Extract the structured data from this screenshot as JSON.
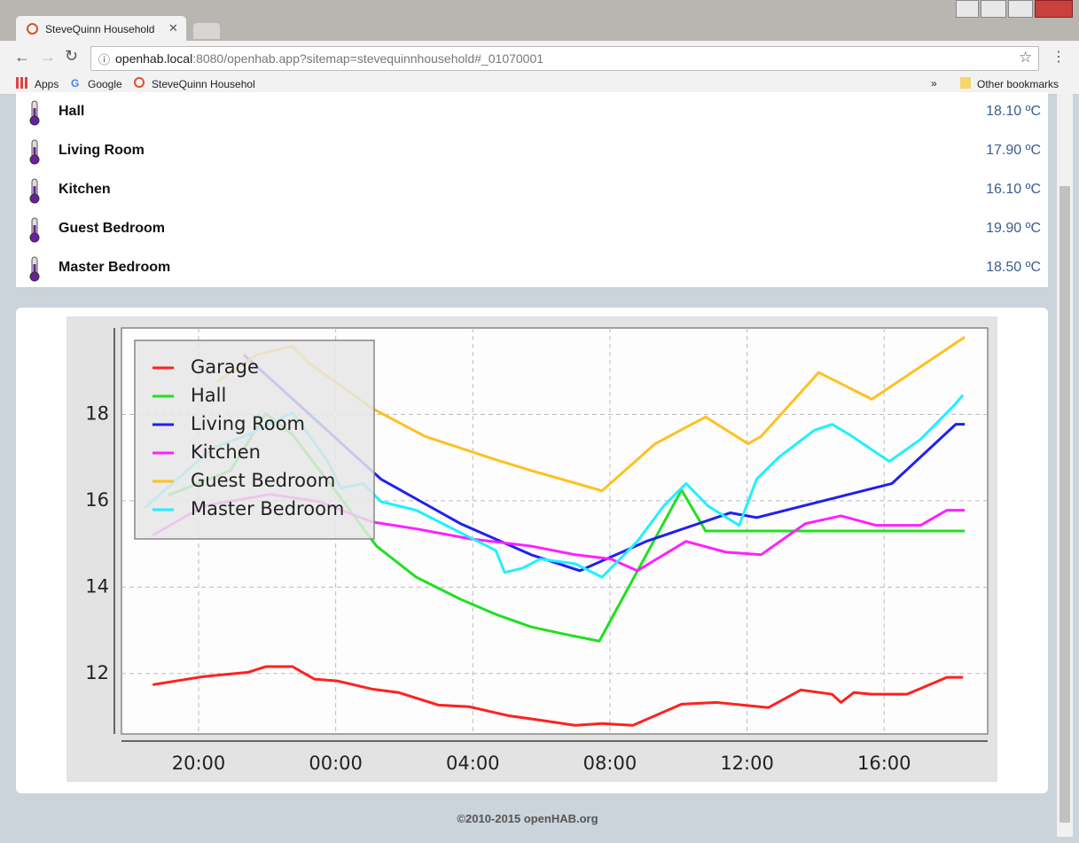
{
  "browser": {
    "tab_title": "SteveQuinn Household",
    "url_host": "openhab.local",
    "url_rest": ":8080/openhab.app?sitemap=stevequinnhousehold#_01070001",
    "bookmarks": [
      "Apps",
      "Google",
      "SteveQuinn Househol"
    ],
    "other_bookmarks": "Other bookmarks"
  },
  "items": [
    {
      "label": "Hall",
      "value": "18.10 ºC"
    },
    {
      "label": "Living Room",
      "value": "17.90 ºC"
    },
    {
      "label": "Kitchen",
      "value": "16.10 ºC"
    },
    {
      "label": "Guest Bedroom",
      "value": "19.90 ºC"
    },
    {
      "label": "Master Bedroom",
      "value": "18.50 ºC"
    }
  ],
  "chart_data": {
    "type": "line",
    "xlim": [
      17.75,
      43.02
    ],
    "ylim": [
      10.6,
      20
    ],
    "xticks": [
      {
        "value": 20,
        "label": "20:00"
      },
      {
        "value": 24,
        "label": "00:00"
      },
      {
        "value": 28,
        "label": "04:00"
      },
      {
        "value": 32,
        "label": "08:00"
      },
      {
        "value": 36,
        "label": "12:00"
      },
      {
        "value": 40,
        "label": "16:00"
      }
    ],
    "yticks": [
      12,
      14,
      16,
      18
    ],
    "grid": true,
    "legend": "upper left",
    "series": [
      {
        "name": "Garage",
        "color": "#ff2020",
        "x": [
          18.66,
          20.15,
          21.45,
          21.96,
          22.74,
          23.38,
          24.03,
          25.06,
          25.83,
          26.99,
          27.9,
          29.06,
          29.96,
          30.99,
          31.77,
          32.67,
          34.09,
          35.12,
          36.62,
          37.57,
          38.48,
          38.74,
          39.12,
          39.64,
          40.67,
          41.83,
          42.3
        ],
        "values": [
          11.74,
          11.93,
          12.03,
          12.16,
          12.16,
          11.87,
          11.83,
          11.64,
          11.56,
          11.27,
          11.23,
          11.02,
          10.92,
          10.8,
          10.84,
          10.8,
          11.29,
          11.33,
          11.21,
          11.62,
          11.52,
          11.33,
          11.56,
          11.52,
          11.52,
          11.91,
          11.91
        ]
      },
      {
        "name": "Hall",
        "color": "#20e020",
        "x": [
          19.12,
          20.93,
          21.96,
          22.74,
          24.03,
          25.19,
          26.35,
          27.64,
          28.67,
          29.7,
          30.74,
          31.69,
          34.09,
          34.79,
          42.35
        ],
        "values": [
          16.13,
          16.7,
          18.02,
          17.53,
          16.19,
          14.95,
          14.23,
          13.72,
          13.37,
          13.08,
          12.9,
          12.75,
          16.25,
          15.3,
          15.3
        ]
      },
      {
        "name": "Living Room",
        "color": "#2020f0",
        "x": [
          21.32,
          25.32,
          27.64,
          29.7,
          31.12,
          33.06,
          35.51,
          36.28,
          40.23,
          42.09,
          42.35
        ],
        "values": [
          19.38,
          16.5,
          15.47,
          14.75,
          14.38,
          15.06,
          15.72,
          15.61,
          16.4,
          17.77,
          17.77
        ]
      },
      {
        "name": "Kitchen",
        "color": "#ff20ff",
        "x": [
          18.66,
          20.15,
          22.09,
          23.51,
          25.06,
          26.35,
          27.9,
          29.7,
          30.99,
          32.03,
          32.8,
          34.22,
          35.38,
          36.41,
          37.7,
          38.74,
          39.77,
          41.06,
          41.83,
          42.35
        ],
        "values": [
          15.2,
          15.88,
          16.15,
          15.98,
          15.51,
          15.35,
          15.12,
          14.95,
          14.75,
          14.65,
          14.38,
          15.06,
          14.81,
          14.75,
          15.47,
          15.65,
          15.43,
          15.43,
          15.78,
          15.78
        ]
      },
      {
        "name": "Guest Bedroom",
        "color": "#ffc020",
        "x": [
          20.54,
          21.7,
          22.74,
          23.25,
          25.06,
          26.61,
          28.67,
          29.7,
          31.77,
          33.32,
          34.79,
          36.03,
          36.41,
          38.09,
          39.64,
          42.35
        ],
        "values": [
          18.76,
          19.38,
          19.58,
          19.17,
          18.14,
          17.49,
          16.95,
          16.7,
          16.23,
          17.32,
          17.94,
          17.32,
          17.49,
          18.97,
          18.35,
          19.79
        ]
      },
      {
        "name": "Master Bedroom",
        "color": "#20f0ff",
        "x": [
          18.43,
          19.38,
          20.41,
          21.45,
          22.74,
          23.77,
          24.15,
          24.8,
          25.32,
          26.35,
          27.64,
          28.67,
          28.93,
          29.45,
          29.96,
          30.99,
          31.77,
          32.8,
          33.57,
          34.22,
          34.86,
          35.77,
          36.28,
          36.93,
          37.96,
          38.48,
          38.99,
          40.15,
          41.06,
          42.09,
          42.3
        ],
        "values": [
          15.84,
          16.5,
          17.22,
          17.53,
          18.04,
          16.91,
          16.29,
          16.4,
          15.98,
          15.78,
          15.26,
          14.85,
          14.34,
          14.44,
          14.65,
          14.54,
          14.23,
          15.06,
          15.88,
          16.4,
          15.88,
          15.43,
          16.5,
          17.01,
          17.63,
          17.77,
          17.53,
          16.91,
          17.42,
          18.25,
          18.45
        ]
      }
    ]
  },
  "footer": "©2010-2015 openHAB.org"
}
